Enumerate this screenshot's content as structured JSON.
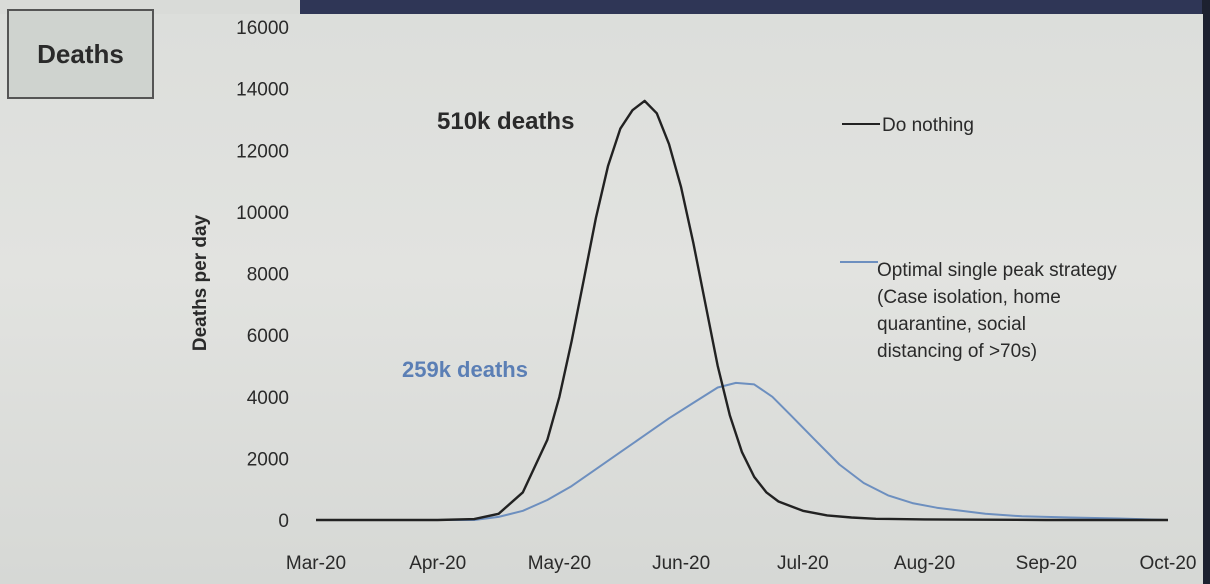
{
  "chart_data": {
    "type": "line",
    "title": "Deaths",
    "ylabel": "Deaths per day",
    "xlabel": "",
    "ylim": [
      0,
      16000
    ],
    "y_ticks": [
      "0",
      "2000",
      "4000",
      "6000",
      "8000",
      "10000",
      "12000",
      "14000",
      "16000"
    ],
    "x_ticks": [
      "Mar-20",
      "Apr-20",
      "May-20",
      "Jun-20",
      "Jul-20",
      "Aug-20",
      "Sep-20",
      "Oct-20"
    ],
    "x_range": [
      0,
      7
    ],
    "series": [
      {
        "name": "Do nothing",
        "color": "#222222",
        "x": [
          0,
          0.5,
          1,
          1.3,
          1.5,
          1.7,
          1.9,
          2.0,
          2.1,
          2.2,
          2.3,
          2.4,
          2.5,
          2.6,
          2.7,
          2.8,
          2.9,
          3.0,
          3.1,
          3.2,
          3.3,
          3.4,
          3.5,
          3.6,
          3.7,
          3.8,
          4.0,
          4.2,
          4.4,
          4.6,
          5.0,
          5.5,
          6.0,
          6.5,
          7.0
        ],
        "values": [
          0,
          0,
          0,
          30,
          200,
          900,
          2600,
          4000,
          5800,
          7800,
          9800,
          11500,
          12700,
          13300,
          13600,
          13200,
          12200,
          10800,
          9000,
          7000,
          5000,
          3400,
          2200,
          1400,
          900,
          600,
          300,
          150,
          80,
          40,
          20,
          10,
          0,
          0,
          0
        ]
      },
      {
        "name": "Optimal single peak strategy\n(Case isolation, home\nquarantine, social\ndistancing of >70s)",
        "color": "#6d8fbf",
        "x": [
          0,
          0.5,
          1,
          1.3,
          1.5,
          1.7,
          1.9,
          2.1,
          2.3,
          2.5,
          2.7,
          2.9,
          3.1,
          3.3,
          3.45,
          3.6,
          3.75,
          3.9,
          4.1,
          4.3,
          4.5,
          4.7,
          4.9,
          5.1,
          5.3,
          5.5,
          5.8,
          6.2,
          6.6,
          7.0
        ],
        "values": [
          0,
          0,
          0,
          0,
          100,
          300,
          650,
          1100,
          1650,
          2200,
          2750,
          3300,
          3800,
          4300,
          4450,
          4400,
          4000,
          3400,
          2600,
          1800,
          1200,
          800,
          550,
          400,
          300,
          200,
          120,
          80,
          50,
          0
        ]
      }
    ],
    "annotations": [
      {
        "text": "510k deaths",
        "series": 0
      },
      {
        "text": "259k deaths",
        "series": 1
      }
    ],
    "legend": [
      "Do nothing",
      "Optimal single peak strategy\n(Case isolation, home\nquarantine, social\ndistancing of >70s)"
    ]
  }
}
